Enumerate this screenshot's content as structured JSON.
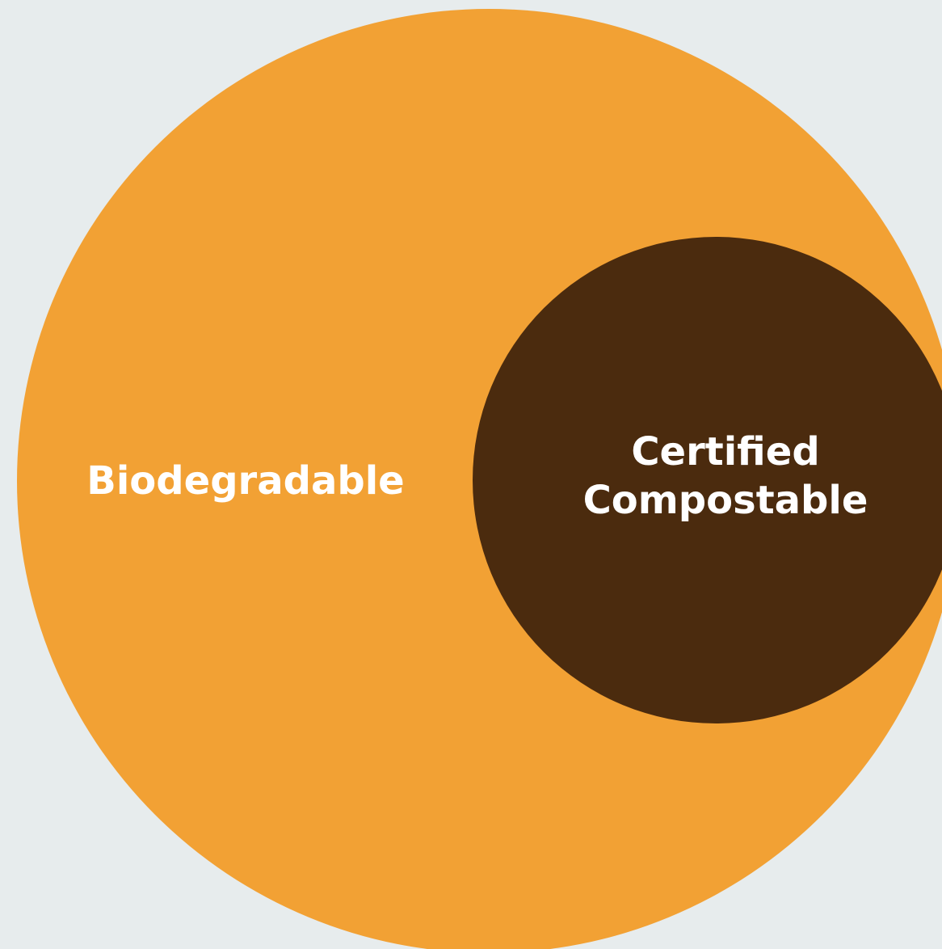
{
  "outer": {
    "label": "Biodegradable"
  },
  "inner": {
    "label_lines": [
      "Certified",
      "Compostable"
    ]
  }
}
